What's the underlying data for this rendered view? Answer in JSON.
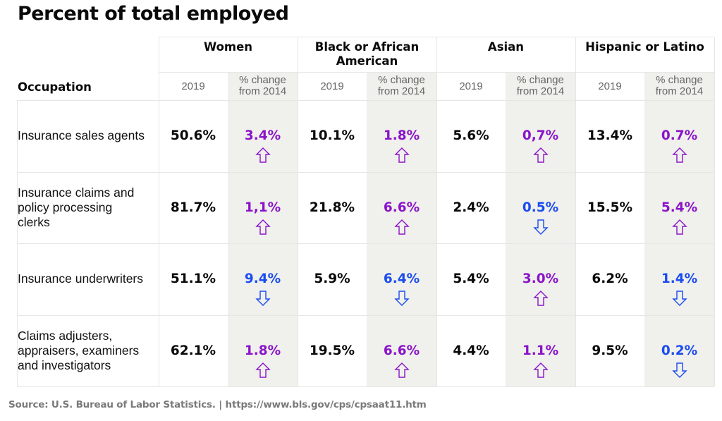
{
  "title": "Percent of total employed",
  "header": {
    "occupation_label": "Occupation",
    "groups": [
      {
        "name": "Women",
        "year_label": "2019",
        "change_label": "% change from 2014"
      },
      {
        "name": "Black or African American",
        "year_label": "2019",
        "change_label": "% change from 2014"
      },
      {
        "name": "Asian",
        "year_label": "2019",
        "change_label": "% change from 2014"
      },
      {
        "name": "Hispanic or Latino",
        "year_label": "2019",
        "change_label": "% change from 2014"
      }
    ]
  },
  "colors": {
    "increase": "#8a13c9",
    "decrease": "#1a4cf0",
    "shade": "#f0f0ec",
    "grid": "#e6e6e6"
  },
  "rows": [
    {
      "occupation": "Insurance sales agents",
      "cells": [
        {
          "value": "50.6%",
          "change": "3.4%",
          "direction": "up"
        },
        {
          "value": "10.1%",
          "change": "1.8%",
          "direction": "up"
        },
        {
          "value": "5.6%",
          "change": "0,7%",
          "direction": "up"
        },
        {
          "value": "13.4%",
          "change": "0.7%",
          "direction": "up"
        }
      ]
    },
    {
      "occupation": "Insurance claims and policy processing clerks",
      "cells": [
        {
          "value": "81.7%",
          "change": "1,1%",
          "direction": "up"
        },
        {
          "value": "21.8%",
          "change": "6.6%",
          "direction": "up"
        },
        {
          "value": "2.4%",
          "change": "0.5%",
          "direction": "down"
        },
        {
          "value": "15.5%",
          "change": "5.4%",
          "direction": "up"
        }
      ]
    },
    {
      "occupation": "Insurance underwriters",
      "cells": [
        {
          "value": "51.1%",
          "change": "9.4%",
          "direction": "down"
        },
        {
          "value": "5.9%",
          "change": "6.4%",
          "direction": "down"
        },
        {
          "value": "5.4%",
          "change": "3.0%",
          "direction": "up"
        },
        {
          "value": "6.2%",
          "change": "1.4%",
          "direction": "down"
        }
      ]
    },
    {
      "occupation": "Claims adjusters, appraisers, examiners and investigators",
      "cells": [
        {
          "value": "62.1%",
          "change": "1.8%",
          "direction": "up"
        },
        {
          "value": "19.5%",
          "change": "6.6%",
          "direction": "up"
        },
        {
          "value": "4.4%",
          "change": "1.1%",
          "direction": "up"
        },
        {
          "value": "9.5%",
          "change": "0.2%",
          "direction": "down"
        }
      ]
    }
  ],
  "source": "Source: U.S. Bureau of Labor Statistics. | https://www.bls.gov/cps/cpsaat11.htm"
}
